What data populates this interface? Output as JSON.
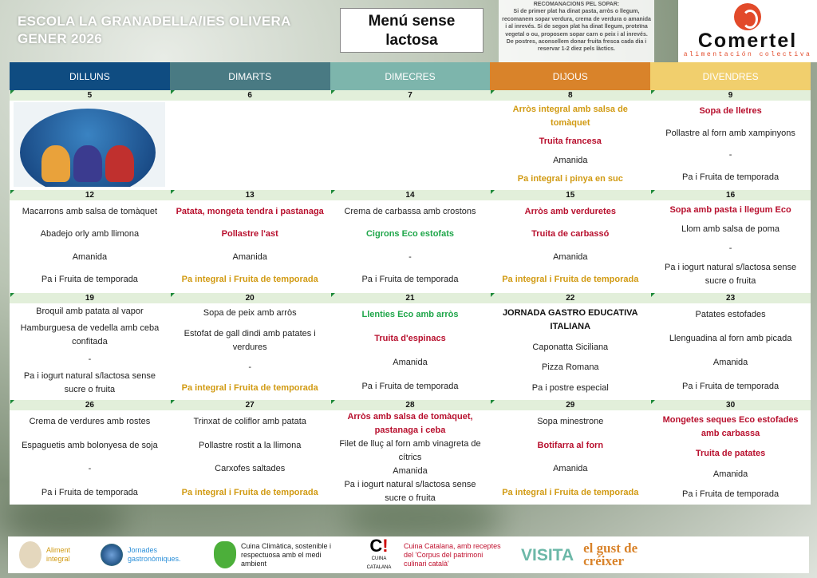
{
  "header": {
    "school": "ESCOLA LA GRANADELLA/IES OLIVERA",
    "month": "GENER 2026",
    "menu_type": "Menú sense\nlactosa",
    "recommendations_title": "RECOMANACIONS PEL SOPAR:",
    "recommendations_text": "Si de primer plat ha dinat pasta, arròs o llegum, recomanem sopar verdura, crema de verdura o amanida i al inrevés. Si de segon plat ha dinat llegum, proteïna vegetal o ou, proposem sopar carn o peix i al inrevés. De postres, aconsellem donar fruita fresca cada dia i reservar 1-2 diez pels làctics.",
    "brand": "Comertel",
    "brand_tagline": "alimentación colectiva"
  },
  "colors": {
    "dilluns": "#0f4c81",
    "dimarts": "#497a83",
    "dimecres": "#7db5ac",
    "dijous": "#d9832a",
    "divendres": "#f1cf6d",
    "date_row": "#e2efda",
    "red": "#b8102e",
    "gold": "#d19a12",
    "green": "#1fa64a"
  },
  "days": [
    "DILLUNS",
    "DIMARTS",
    "DIMECRES",
    "DIJOUS",
    "DIVENDRES"
  ],
  "weeks": [
    {
      "dates": [
        "5",
        "6",
        "7",
        "8",
        "9"
      ],
      "cells": [
        {
          "image": "three-kings-illustration",
          "items": []
        },
        {
          "items": []
        },
        {
          "items": []
        },
        {
          "items": [
            {
              "text": "Arròs integral amb salsa de tomàquet",
              "tone": "gold"
            },
            {
              "text": "Truita francesa",
              "tone": "red"
            },
            {
              "text": "Amanida",
              "tone": "normal"
            },
            {
              "text": "Pa integral i pinya en suc",
              "tone": "gold"
            }
          ]
        },
        {
          "items": [
            {
              "text": "Sopa de lletres",
              "tone": "red"
            },
            {
              "text": "Pollastre al forn amb xampinyons",
              "tone": "normal"
            },
            {
              "text": "-",
              "tone": "normal"
            },
            {
              "text": "Pa i Fruita de temporada",
              "tone": "normal"
            }
          ]
        }
      ]
    },
    {
      "dates": [
        "12",
        "13",
        "14",
        "15",
        "16"
      ],
      "cells": [
        {
          "items": [
            {
              "text": "Macarrons amb salsa de tomàquet",
              "tone": "normal"
            },
            {
              "text": "Abadejo orly amb llimona",
              "tone": "normal"
            },
            {
              "text": "Amanida",
              "tone": "normal"
            },
            {
              "text": "Pa i Fruita de temporada",
              "tone": "normal"
            }
          ]
        },
        {
          "items": [
            {
              "text": "Patata, mongeta tendra i pastanaga",
              "tone": "red"
            },
            {
              "text": "Pollastre l'ast",
              "tone": "red"
            },
            {
              "text": "Amanida",
              "tone": "normal"
            },
            {
              "text": "Pa integral i Fruita de temporada",
              "tone": "gold"
            }
          ]
        },
        {
          "items": [
            {
              "text": "Crema de carbassa amb crostons",
              "tone": "normal"
            },
            {
              "text": "Cigrons Eco estofats",
              "tone": "green"
            },
            {
              "text": "-",
              "tone": "normal"
            },
            {
              "text": "Pa i Fruita de temporada",
              "tone": "normal"
            }
          ]
        },
        {
          "items": [
            {
              "text": "Arròs amb verduretes",
              "tone": "red"
            },
            {
              "text": "Truita de carbassó",
              "tone": "red"
            },
            {
              "text": "Amanida",
              "tone": "normal"
            },
            {
              "text": "Pa integral i Fruita de temporada",
              "tone": "gold"
            }
          ]
        },
        {
          "items": [
            {
              "text": "Sopa amb pasta i llegum Eco",
              "tone": "red"
            },
            {
              "text": "Llom amb salsa de poma",
              "tone": "normal"
            },
            {
              "text": "-",
              "tone": "normal"
            },
            {
              "text": "Pa i iogurt natural s/lactosa sense sucre o fruita",
              "tone": "normal"
            }
          ]
        }
      ]
    },
    {
      "dates": [
        "19",
        "20",
        "21",
        "22",
        "23"
      ],
      "cells": [
        {
          "items": [
            {
              "text": "Broquil amb patata al vapor",
              "tone": "normal"
            },
            {
              "text": "Hamburguesa de vedella amb ceba confitada",
              "tone": "normal"
            },
            {
              "text": "-",
              "tone": "normal"
            },
            {
              "text": "Pa i iogurt natural s/lactosa sense sucre o fruita",
              "tone": "normal"
            }
          ]
        },
        {
          "items": [
            {
              "text": "Sopa de peix amb arròs",
              "tone": "normal"
            },
            {
              "text": "Estofat de gall dindi amb patates i verdures",
              "tone": "normal"
            },
            {
              "text": "-",
              "tone": "normal"
            },
            {
              "text": "Pa integral i Fruita de temporada",
              "tone": "gold"
            }
          ]
        },
        {
          "items": [
            {
              "text": "Llenties Eco amb arròs",
              "tone": "green"
            },
            {
              "text": "Truita d'espinacs",
              "tone": "red"
            },
            {
              "text": "Amanida",
              "tone": "normal"
            },
            {
              "text": "Pa i Fruita de temporada",
              "tone": "normal"
            }
          ]
        },
        {
          "items": [
            {
              "text": "JORNADA GASTRO EDUCATIVA ITALIANA",
              "tone": "bold"
            },
            {
              "text": "Caponatta Siciliana",
              "tone": "normal"
            },
            {
              "text": "Pizza Romana",
              "tone": "normal"
            },
            {
              "text": "Pa i postre especial",
              "tone": "normal"
            }
          ]
        },
        {
          "items": [
            {
              "text": "Patates estofades",
              "tone": "normal"
            },
            {
              "text": "Llenguadina al forn amb picada",
              "tone": "normal"
            },
            {
              "text": "Amanida",
              "tone": "normal"
            },
            {
              "text": "Pa i Fruita de temporada",
              "tone": "normal"
            }
          ]
        }
      ]
    },
    {
      "dates": [
        "26",
        "27",
        "28",
        "29",
        "30"
      ],
      "cells": [
        {
          "items": [
            {
              "text": "Crema de verdures amb rostes",
              "tone": "normal"
            },
            {
              "text": "Espaguetis amb bolonyesa de soja",
              "tone": "normal"
            },
            {
              "text": "-",
              "tone": "normal"
            },
            {
              "text": "Pa i Fruita de temporada",
              "tone": "normal"
            }
          ]
        },
        {
          "items": [
            {
              "text": "Trinxat de coliflor amb patata",
              "tone": "normal"
            },
            {
              "text": "Pollastre rostit a la llimona",
              "tone": "normal"
            },
            {
              "text": "Carxofes saltades",
              "tone": "normal"
            },
            {
              "text": "Pa integral i Fruita de temporada",
              "tone": "gold"
            }
          ]
        },
        {
          "items": [
            {
              "text": "Arròs amb salsa de tomàquet, pastanaga i ceba",
              "tone": "red"
            },
            {
              "text": "Filet de lluç al forn amb vinagreta de cítrics",
              "tone": "normal"
            },
            {
              "text": "Amanida",
              "tone": "normal"
            },
            {
              "text": "Pa i iogurt natural s/lactosa sense sucre o fruita",
              "tone": "normal"
            }
          ]
        },
        {
          "items": [
            {
              "text": "Sopa minestrone",
              "tone": "normal"
            },
            {
              "text": "Botifarra al forn",
              "tone": "red"
            },
            {
              "text": "Amanida",
              "tone": "normal"
            },
            {
              "text": "Pa integral i Fruita de temporada",
              "tone": "gold"
            }
          ]
        },
        {
          "items": [
            {
              "text": "Mongetes seques Eco estofades amb carbassa",
              "tone": "red"
            },
            {
              "text": "Truita de patates",
              "tone": "red"
            },
            {
              "text": "Amanida",
              "tone": "normal"
            },
            {
              "text": "Pa i Fruita de temporada",
              "tone": "normal"
            }
          ]
        }
      ]
    }
  ],
  "footer": {
    "aliment": "Aliment integral",
    "jornades": "Jornades gastronòmiques.",
    "climatica": "Cuina Climàtica, sostenible i respectuosa amb el medi ambient",
    "catalana_logo": "CUINA CATALANA",
    "catalana": "Cuina Catalana, amb receptes del 'Corpus del patrimoni culinari català'",
    "visita": "VISITA",
    "gust": "el gust de créixer"
  }
}
